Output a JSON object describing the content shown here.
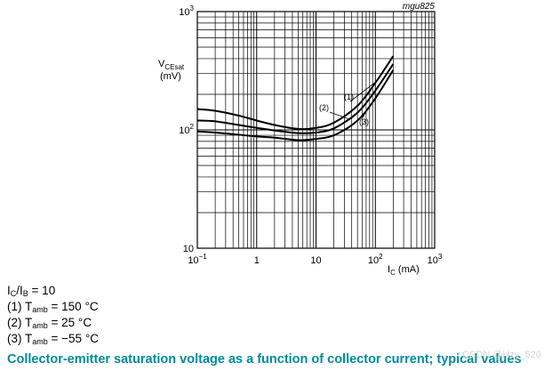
{
  "chart_data": {
    "type": "line",
    "figure_id": "mgu825",
    "x_scale": "log",
    "y_scale": "log",
    "xlim": [
      0.1,
      1000
    ],
    "ylim": [
      10,
      1000
    ],
    "grid": true,
    "x_tick_labels": [
      {
        "value": 0.1,
        "base": "10",
        "exp": "−1"
      },
      {
        "value": 1,
        "base": "1",
        "exp": ""
      },
      {
        "value": 10,
        "base": "10",
        "exp": ""
      },
      {
        "value": 100,
        "base": "10",
        "exp": "2"
      },
      {
        "value": 1000,
        "base": "10",
        "exp": "3"
      }
    ],
    "y_tick_labels": [
      {
        "value": 10,
        "base": "10",
        "exp": ""
      },
      {
        "value": 100,
        "base": "10",
        "exp": "2"
      },
      {
        "value": 1000,
        "base": "10",
        "exp": "3"
      }
    ],
    "xlabel": {
      "main": "I",
      "sub": "C",
      "unit": " (mA)"
    },
    "ylabel": {
      "main": "V",
      "sub": "CEsat",
      "unit": "(mV)"
    },
    "series": [
      {
        "name": "(1)",
        "x": [
          0.1,
          0.2,
          0.5,
          1,
          2,
          5,
          10,
          20,
          50,
          100,
          200
        ],
        "y": [
          150,
          145,
          132,
          120,
          110,
          102,
          104,
          115,
          160,
          250,
          420
        ]
      },
      {
        "name": "(2)",
        "x": [
          0.1,
          0.2,
          0.5,
          1,
          2,
          5,
          10,
          20,
          50,
          100,
          200
        ],
        "y": [
          120,
          118,
          110,
          104,
          99,
          94,
          95,
          103,
          140,
          215,
          360
        ]
      },
      {
        "name": "(3)",
        "x": [
          0.1,
          0.2,
          0.5,
          1,
          2,
          5,
          10,
          20,
          50,
          100,
          200
        ],
        "y": [
          97,
          95,
          91,
          88,
          86,
          82,
          84,
          90,
          120,
          185,
          320
        ]
      }
    ]
  },
  "notes": {
    "ratio": {
      "main1": "I",
      "sub1": "C",
      "slash": "/I",
      "sub2": "B",
      "rest": " = 10"
    },
    "conditions": [
      {
        "label": "(1) T",
        "sub": "amb",
        "rest": " = 150 °C"
      },
      {
        "label": "(2) T",
        "sub": "amb",
        "rest": " = 25 °C"
      },
      {
        "label": "(3) T",
        "sub": "amb",
        "rest": " = −55 °C"
      }
    ]
  },
  "caption": "Collector-emitter saturation voltage as a function of collector current; typical values",
  "watermark": "CSDN @Hzy_520"
}
